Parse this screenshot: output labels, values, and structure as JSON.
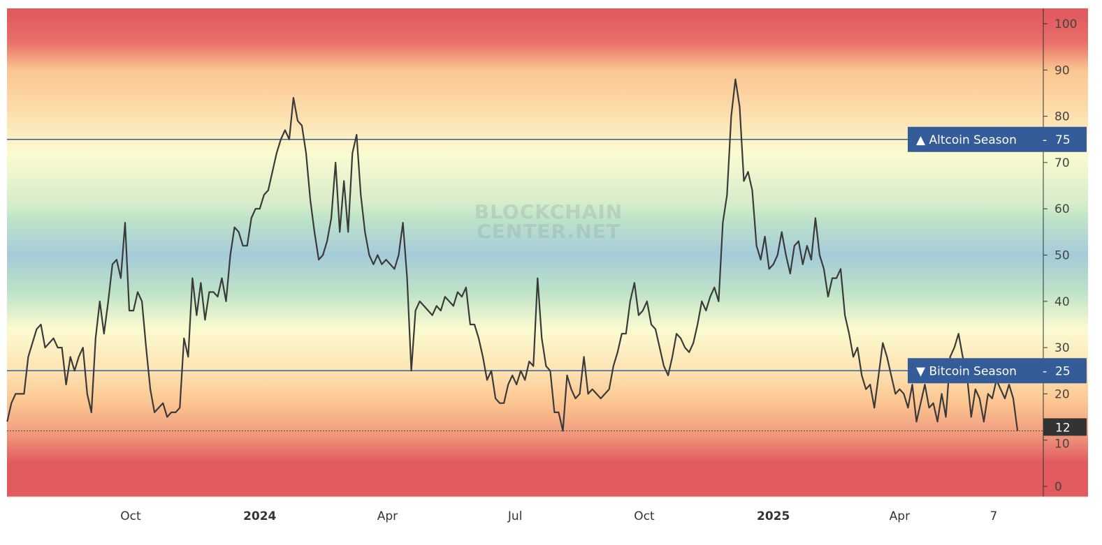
{
  "watermark": [
    "BLOCKCHAIN",
    "CENTER.NET"
  ],
  "colors": {
    "line": "#3a3a3a",
    "threshold_line": "#3a5f95",
    "label_bg": "#335c99",
    "last_value_bg": "#333333",
    "band_red": "#e05a5e",
    "band_orange": "#fbc590",
    "band_yellow": "#fbfbd0",
    "band_green": "#bee3c8",
    "band_blue": "#a5cbd9"
  },
  "chart_data": {
    "type": "line",
    "title": "",
    "xlabel": "",
    "ylabel": "",
    "ylim": [
      -2,
      102
    ],
    "yaxis_position": "right",
    "grid": false,
    "background": "vertical color gradient: red (high/low extremes), orange, yellow, green, blue (middle)",
    "yticks": [
      0,
      10,
      20,
      30,
      40,
      50,
      60,
      70,
      80,
      90,
      100
    ],
    "xticks": [
      {
        "date": "2023-10-01",
        "label": "Oct",
        "major": false
      },
      {
        "date": "2024-01-01",
        "label": "2024",
        "major": true
      },
      {
        "date": "2024-04-01",
        "label": "Apr",
        "major": false
      },
      {
        "date": "2024-07-01",
        "label": "Jul",
        "major": false
      },
      {
        "date": "2024-10-01",
        "label": "Oct",
        "major": false
      },
      {
        "date": "2025-01-01",
        "label": "2025",
        "major": true
      },
      {
        "date": "2025-04-01",
        "label": "Apr",
        "major": false
      },
      {
        "date": "2025-06-07",
        "label": "7",
        "major": false
      }
    ],
    "thresholds": [
      {
        "value": 75,
        "label": "▲ Altcoin Season",
        "value_label": "75"
      },
      {
        "value": 25,
        "label": "▼ Bitcoin Season",
        "value_label": "25"
      }
    ],
    "last_value": {
      "value": 12,
      "label": "12"
    },
    "series": [
      {
        "x": [
          "2023-07-05",
          "2023-07-08",
          "2023-07-11",
          "2023-07-14",
          "2023-07-17",
          "2023-07-20",
          "2023-07-23",
          "2023-07-26",
          "2023-07-29",
          "2023-08-01",
          "2023-08-04",
          "2023-08-07",
          "2023-08-10",
          "2023-08-13",
          "2023-08-16",
          "2023-08-19",
          "2023-08-22",
          "2023-08-25",
          "2023-08-28",
          "2023-08-31",
          "2023-09-03",
          "2023-09-06",
          "2023-09-09",
          "2023-09-12",
          "2023-09-15",
          "2023-09-18",
          "2023-09-21",
          "2023-09-24",
          "2023-09-27",
          "2023-09-30",
          "2023-10-03",
          "2023-10-06",
          "2023-10-09",
          "2023-10-12",
          "2023-10-15",
          "2023-10-18",
          "2023-10-21",
          "2023-10-24",
          "2023-10-27",
          "2023-10-30",
          "2023-11-02",
          "2023-11-05",
          "2023-11-08",
          "2023-11-11",
          "2023-11-14",
          "2023-11-17",
          "2023-11-20",
          "2023-11-23",
          "2023-11-26",
          "2023-11-29",
          "2023-12-02",
          "2023-12-05",
          "2023-12-08",
          "2023-12-11",
          "2023-12-14",
          "2023-12-17",
          "2023-12-20",
          "2023-12-23",
          "2023-12-26",
          "2023-12-29",
          "2024-01-01",
          "2024-01-04",
          "2024-01-07",
          "2024-01-10",
          "2024-01-13",
          "2024-01-16",
          "2024-01-19",
          "2024-01-22",
          "2024-01-25",
          "2024-01-28",
          "2024-01-31",
          "2024-02-03",
          "2024-02-06",
          "2024-02-09",
          "2024-02-12",
          "2024-02-15",
          "2024-02-18",
          "2024-02-21",
          "2024-02-24",
          "2024-02-27",
          "2024-03-01",
          "2024-03-04",
          "2024-03-07",
          "2024-03-10",
          "2024-03-13",
          "2024-03-16",
          "2024-03-19",
          "2024-03-22",
          "2024-03-25",
          "2024-03-28",
          "2024-03-31",
          "2024-04-03",
          "2024-04-06",
          "2024-04-09",
          "2024-04-12",
          "2024-04-15",
          "2024-04-18",
          "2024-04-21",
          "2024-04-24",
          "2024-04-27",
          "2024-04-30",
          "2024-05-03",
          "2024-05-06",
          "2024-05-09",
          "2024-05-12",
          "2024-05-15",
          "2024-05-18",
          "2024-05-21",
          "2024-05-24",
          "2024-05-27",
          "2024-05-30",
          "2024-06-02",
          "2024-06-05",
          "2024-06-08",
          "2024-06-11",
          "2024-06-14",
          "2024-06-17",
          "2024-06-20",
          "2024-06-23",
          "2024-06-26",
          "2024-06-29",
          "2024-07-02",
          "2024-07-05",
          "2024-07-08",
          "2024-07-11",
          "2024-07-14",
          "2024-07-17",
          "2024-07-20",
          "2024-07-23",
          "2024-07-26",
          "2024-07-29",
          "2024-08-01",
          "2024-08-04",
          "2024-08-07",
          "2024-08-10",
          "2024-08-13",
          "2024-08-16",
          "2024-08-19",
          "2024-08-22",
          "2024-08-25",
          "2024-08-28",
          "2024-08-31",
          "2024-09-03",
          "2024-09-06",
          "2024-09-09",
          "2024-09-12",
          "2024-09-15",
          "2024-09-18",
          "2024-09-21",
          "2024-09-24",
          "2024-09-27",
          "2024-09-30",
          "2024-10-03",
          "2024-10-06",
          "2024-10-09",
          "2024-10-12",
          "2024-10-15",
          "2024-10-18",
          "2024-10-21",
          "2024-10-24",
          "2024-10-27",
          "2024-10-30",
          "2024-11-02",
          "2024-11-05",
          "2024-11-08",
          "2024-11-11",
          "2024-11-14",
          "2024-11-17",
          "2024-11-20",
          "2024-11-23",
          "2024-11-26",
          "2024-11-29",
          "2024-12-02",
          "2024-12-05",
          "2024-12-08",
          "2024-12-11",
          "2024-12-14",
          "2024-12-17",
          "2024-12-20",
          "2024-12-23",
          "2024-12-26",
          "2024-12-29",
          "2025-01-01",
          "2025-01-04",
          "2025-01-07",
          "2025-01-10",
          "2025-01-13",
          "2025-01-16",
          "2025-01-19",
          "2025-01-22",
          "2025-01-25",
          "2025-01-28",
          "2025-01-31",
          "2025-02-03",
          "2025-02-06",
          "2025-02-09",
          "2025-02-12",
          "2025-02-15",
          "2025-02-18",
          "2025-02-21",
          "2025-02-24",
          "2025-02-27",
          "2025-03-02",
          "2025-03-05",
          "2025-03-08",
          "2025-03-11",
          "2025-03-14",
          "2025-03-17",
          "2025-03-20",
          "2025-03-23",
          "2025-03-26",
          "2025-03-29",
          "2025-04-01",
          "2025-04-04",
          "2025-04-07",
          "2025-04-10",
          "2025-04-13",
          "2025-04-16",
          "2025-04-19",
          "2025-04-22",
          "2025-04-25",
          "2025-04-28",
          "2025-05-01",
          "2025-05-04",
          "2025-05-07",
          "2025-05-10",
          "2025-05-13",
          "2025-05-16",
          "2025-05-19",
          "2025-05-22",
          "2025-05-25",
          "2025-05-28",
          "2025-05-31",
          "2025-06-03",
          "2025-06-06",
          "2025-06-09",
          "2025-06-12",
          "2025-06-15",
          "2025-06-18",
          "2025-06-21",
          "2025-06-24"
        ],
        "y": [
          14,
          18,
          20,
          20,
          20,
          28,
          31,
          34,
          35,
          30,
          31,
          32,
          30,
          30,
          22,
          28,
          25,
          28,
          30,
          20,
          16,
          32,
          40,
          33,
          40,
          48,
          49,
          45,
          57,
          38,
          38,
          42,
          40,
          30,
          21,
          16,
          17,
          18,
          15,
          16,
          16,
          17,
          32,
          28,
          45,
          37,
          44,
          36,
          42,
          42,
          41,
          45,
          40,
          50,
          56,
          55,
          52,
          52,
          58,
          60,
          60,
          63,
          64,
          68,
          72,
          75,
          77,
          75,
          84,
          79,
          78,
          72,
          62,
          55,
          49,
          50,
          53,
          58,
          70,
          55,
          66,
          55,
          72,
          76,
          63,
          55,
          50,
          48,
          50,
          48,
          49,
          48,
          47,
          50,
          57,
          45,
          25,
          38,
          40,
          39,
          38,
          37,
          39,
          38,
          41,
          40,
          39,
          42,
          41,
          43,
          35,
          35,
          32,
          28,
          23,
          25,
          19,
          18,
          18,
          22,
          24,
          22,
          25,
          23,
          27,
          26,
          45,
          32,
          26,
          25,
          16,
          16,
          12,
          24,
          21,
          19,
          20,
          28,
          20,
          21,
          20,
          19,
          20,
          21,
          26,
          29,
          33,
          33,
          40,
          44,
          37,
          38,
          40,
          35,
          34,
          30,
          26,
          24,
          28,
          33,
          32,
          30,
          29,
          31,
          35,
          40,
          38,
          41,
          43,
          40,
          57,
          63,
          80,
          88,
          82,
          66,
          68,
          64,
          52,
          49,
          54,
          47,
          48,
          50,
          55,
          50,
          46,
          52,
          53,
          48,
          52,
          49,
          58,
          50,
          47,
          41,
          45,
          45,
          47,
          37,
          33,
          28,
          30,
          24,
          21,
          22,
          17,
          24,
          31,
          28,
          24,
          20,
          21,
          20,
          17,
          22,
          14,
          18,
          22,
          17,
          18,
          14,
          20,
          15,
          28,
          30,
          33,
          28,
          24,
          15,
          21,
          19,
          14,
          20,
          19,
          23,
          21,
          19,
          22,
          19,
          12
        ]
      }
    ]
  }
}
